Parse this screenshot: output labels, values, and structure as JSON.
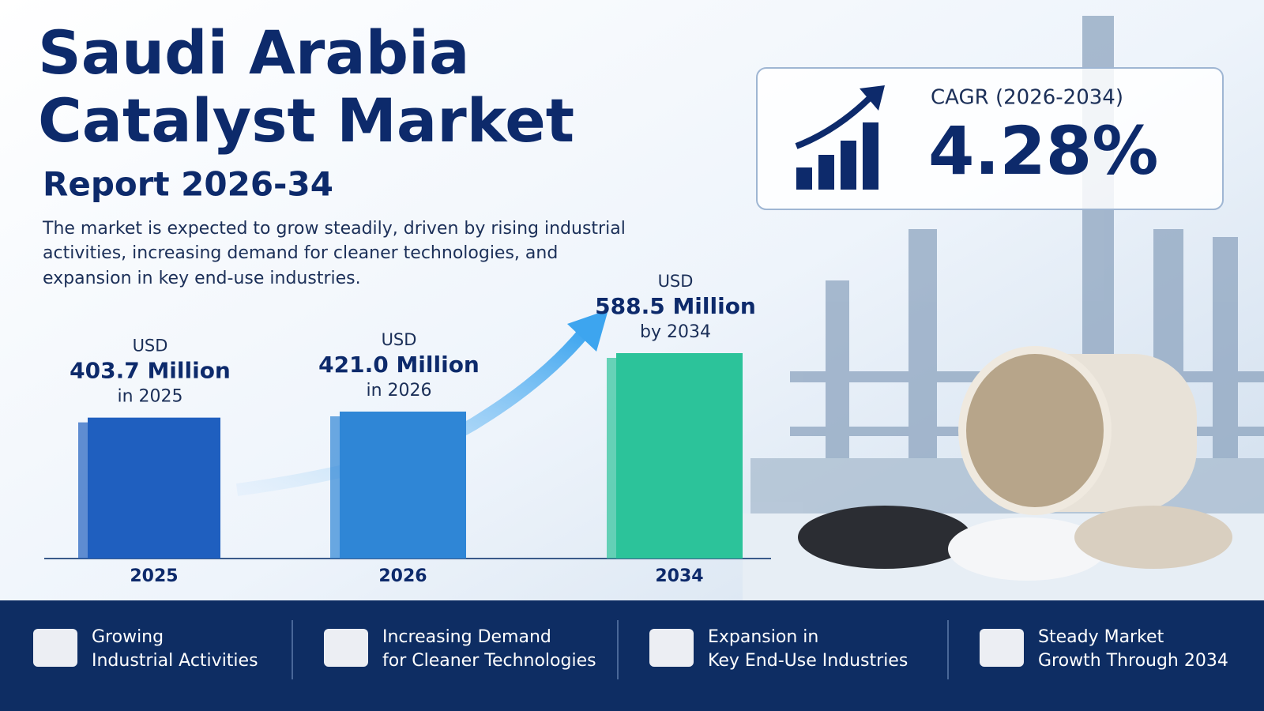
{
  "header": {
    "title_lines": [
      "Saudi Arabia",
      "Catalyst Market"
    ],
    "subtitle": "Report 2026-34",
    "description_lines": [
      "The market is expected to grow steadily, driven by rising industrial",
      "activities, increasing demand for cleaner technologies, and",
      "expansion in key end-use industries."
    ]
  },
  "cagr": {
    "label": "CAGR (2026-2034)",
    "value": "4.28%"
  },
  "chart_data": {
    "type": "bar",
    "categories": [
      "2025",
      "2026",
      "2034"
    ],
    "values": [
      403.7,
      421.0,
      588.5
    ],
    "value_labels": [
      "403.7 Million",
      "421.0 Million",
      "588.5 Million"
    ],
    "label_prefix": [
      "USD",
      "USD",
      "USD"
    ],
    "label_suffix": [
      "in 2025",
      "in 2026",
      "by 2034"
    ],
    "colors": [
      "#1f5fbf",
      "#2f86d6",
      "#2cc39a"
    ]
  },
  "features": [
    [
      "Growing",
      "Industrial Activities"
    ],
    [
      "Increasing Demand",
      "for Cleaner Technologies"
    ],
    [
      "Expansion in",
      "Key End-Use Industries"
    ],
    [
      "Steady Market",
      "Growth Through 2034"
    ]
  ]
}
